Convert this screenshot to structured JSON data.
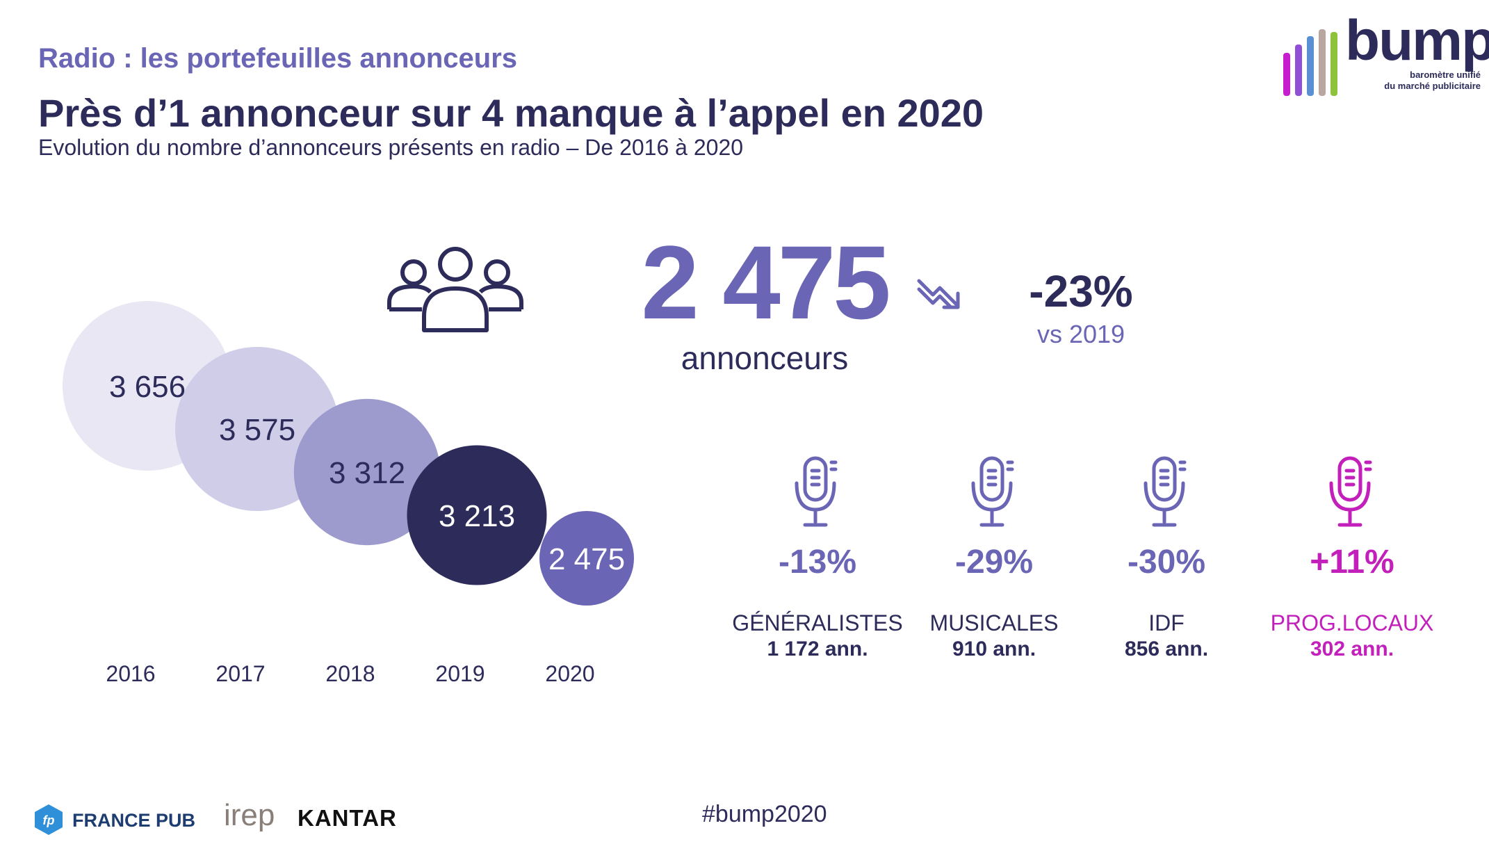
{
  "header": {
    "kicker": "Radio : les portefeuilles annonceurs",
    "headline": "Près d’1 annonceur sur 4 manque à l’appel en 2020",
    "subtitle": "Evolution du nombre d’annonceurs présents en radio – De 2016 à 2020"
  },
  "brand": {
    "name": "bump",
    "tagline_1": "baromètre unifié",
    "tagline_2": "du marché publicitaire",
    "bar_colors": [
      "#c61ecf",
      "#8f4fd6",
      "#5b8fd4",
      "#b9a6a0",
      "#8fc23b"
    ]
  },
  "kpi": {
    "icon": "people-group-icon",
    "value": "2 475",
    "unit": "annonceurs",
    "trend_icon": "trend-down-arrow-icon",
    "change": "-23%",
    "change_reference": "vs 2019"
  },
  "chart_data": {
    "type": "bubble",
    "categories": [
      "2016",
      "2017",
      "2018",
      "2019",
      "2020"
    ],
    "values": [
      3656,
      3575,
      3312,
      3213,
      2475
    ],
    "value_labels": [
      "3 656",
      "3 575",
      "3 312",
      "3 213",
      "2 475"
    ],
    "colors": [
      "#e8e7f3",
      "#cfcde8",
      "#9d9acd",
      "#2d2b5a",
      "#6a65b4"
    ],
    "label_colors": [
      "#2d2b5a",
      "#2d2b5a",
      "#2d2b5a",
      "#ffffff",
      "#ffffff"
    ]
  },
  "segments": [
    {
      "icon": "microphone-icon",
      "change": "-13%",
      "name": "GÉNÉRALISTES",
      "count": "1 172",
      "unit": "ann.",
      "color": "#6a65b4",
      "name_color": "#2d2b5a"
    },
    {
      "icon": "microphone-icon",
      "change": "-29%",
      "name": "MUSICALES",
      "count": "910",
      "unit": "ann.",
      "color": "#6a65b4",
      "name_color": "#2d2b5a"
    },
    {
      "icon": "microphone-icon",
      "change": "-30%",
      "name": "IDF",
      "count": "856",
      "unit": "ann.",
      "color": "#6a65b4",
      "name_color": "#2d2b5a"
    },
    {
      "icon": "microphone-icon",
      "change": "+11%",
      "name": "PROG.LOCAUX",
      "count": "302",
      "unit": "ann.",
      "color": "#c21fbb",
      "name_color": "#c21fbb"
    }
  ],
  "footer": {
    "hashtag": "#bump2020",
    "partner_francepub": "FRANCE PUB",
    "partner_francepub_badge": "fp",
    "partner_irep": "irep",
    "partner_kantar": "KANTAR"
  }
}
